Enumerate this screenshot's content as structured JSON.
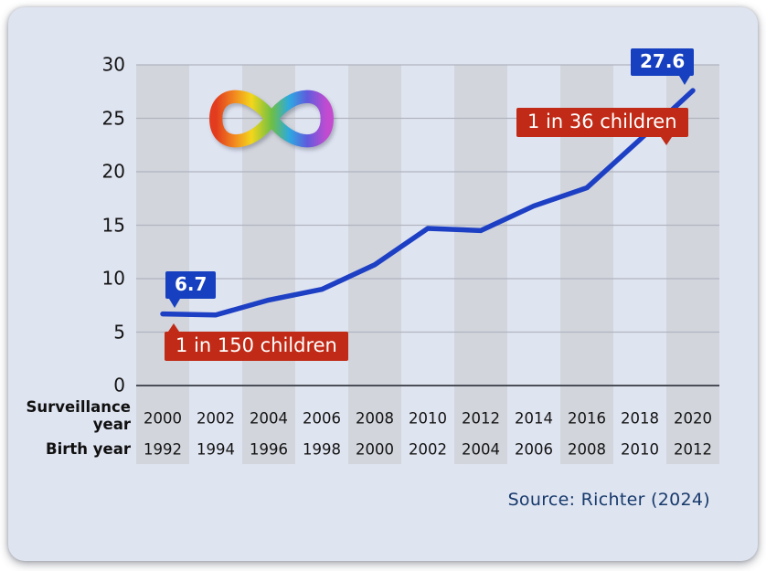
{
  "colors": {
    "card-bg": "#dfe4f1",
    "stripe": "#d2d5dc",
    "grid": "#b0b5c0",
    "axis": "#4a4e57",
    "line": "#1d3fc4",
    "blue-badge": "#1640bf",
    "red-badge": "#c02a16",
    "source": "#173a6b"
  },
  "chart_data": {
    "type": "line",
    "title": "",
    "series": [
      {
        "values": [
          6.7,
          6.6,
          8.0,
          9.0,
          11.3,
          14.7,
          14.5,
          16.8,
          18.5,
          23.0,
          27.6
        ]
      }
    ],
    "x_axis": {
      "rows": [
        {
          "label": "Surveillance\nyear",
          "ticks": [
            "2000",
            "2002",
            "2004",
            "2006",
            "2008",
            "2010",
            "2012",
            "2014",
            "2016",
            "2018",
            "2020"
          ]
        },
        {
          "label": "Birth year",
          "ticks": [
            "1992",
            "1994",
            "1996",
            "1998",
            "2000",
            "2002",
            "2004",
            "2006",
            "2008",
            "2010",
            "2012"
          ]
        }
      ]
    },
    "y_axis": {
      "min": 0,
      "max": 30,
      "ticks": [
        0,
        5,
        10,
        15,
        20,
        25,
        30
      ]
    },
    "grid": "horizontal",
    "legend": "none",
    "annotations": [
      {
        "text": "6.7",
        "type": "value-callout",
        "x_index": 0
      },
      {
        "text": "27.6",
        "type": "value-callout",
        "x_index": 10
      },
      {
        "text": "1 in 150 children",
        "type": "note-callout",
        "x_index": 0
      },
      {
        "text": "1 in 36 children",
        "type": "note-callout",
        "x_index": 10
      }
    ]
  },
  "icons": {
    "logo": "rainbow-infinity autism symbol"
  },
  "source": {
    "text": "Source: Richter (2024)"
  }
}
